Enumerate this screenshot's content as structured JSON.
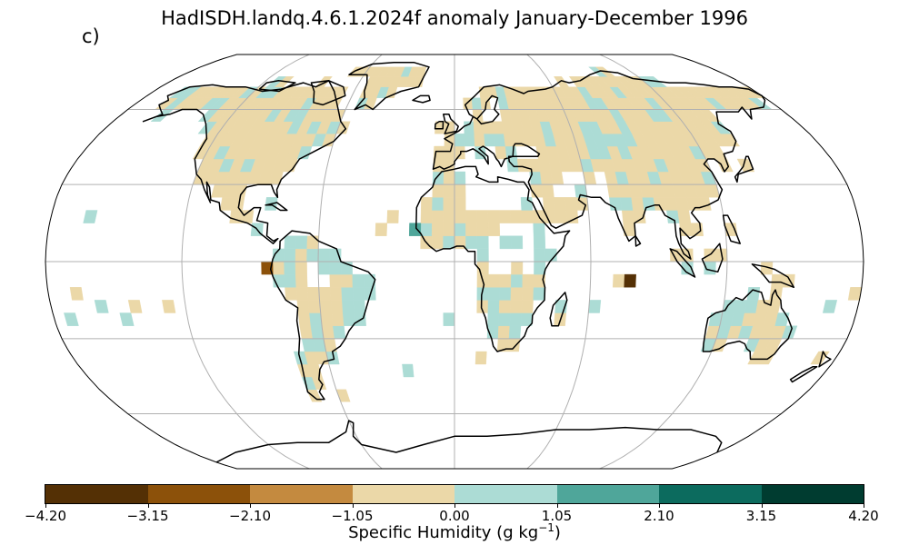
{
  "title": "HadISDH.landq.4.6.1.2024f anomaly January-December 1996",
  "panel_label": "c)",
  "colorbar": {
    "label_prefix": "Specific Humidity (g kg",
    "label_exp": "−1",
    "label_suffix": ")",
    "ticks": [
      "−4.20",
      "−3.15",
      "−2.10",
      "−1.05",
      "0.00",
      "1.05",
      "2.10",
      "3.15",
      "4.20"
    ],
    "colors": [
      "#543005",
      "#8c510a",
      "#c48a3f",
      "#ebd8a8",
      "#acdcd5",
      "#4fa69a",
      "#0c6b5e",
      "#003c30"
    ]
  },
  "chart_data": {
    "type": "heatmap",
    "projection": "Robinson",
    "variable": "Specific Humidity anomaly",
    "units": "g kg−1",
    "period": "January-December 1996",
    "gridlines": true,
    "coastlines": true,
    "value_range": [
      -4.2,
      4.2
    ],
    "bins": [
      -4.2,
      -3.15,
      -2.1,
      -1.05,
      0.0,
      1.05,
      2.1,
      3.15,
      4.2
    ],
    "regions": [
      {
        "name": "North America",
        "anomaly": -0.5
      },
      {
        "name": "Greenland",
        "anomaly": -0.5
      },
      {
        "name": "Alaska / NW Canada coast",
        "anomaly": 0.5
      },
      {
        "name": "Central America",
        "anomaly": 0.5
      },
      {
        "name": "South America west",
        "anomaly": -0.5
      },
      {
        "name": "South America east",
        "anomaly": 0.5
      },
      {
        "name": "Europe",
        "anomaly": -0.5
      },
      {
        "name": "Northern Asia",
        "anomaly": -0.5
      },
      {
        "name": "Central Asia",
        "anomaly": 0.5
      },
      {
        "name": "Southern Africa",
        "anomaly": 0.5
      },
      {
        "name": "Australia east",
        "anomaly": -0.5
      },
      {
        "name": "Australia west",
        "anomaly": 0.5
      },
      {
        "name": "West Africa coast point",
        "anomaly": 1.5
      },
      {
        "name": "Peru coast point",
        "anomaly": -2.5
      },
      {
        "name": "Indian Ocean point",
        "anomaly": -3.8
      }
    ]
  }
}
